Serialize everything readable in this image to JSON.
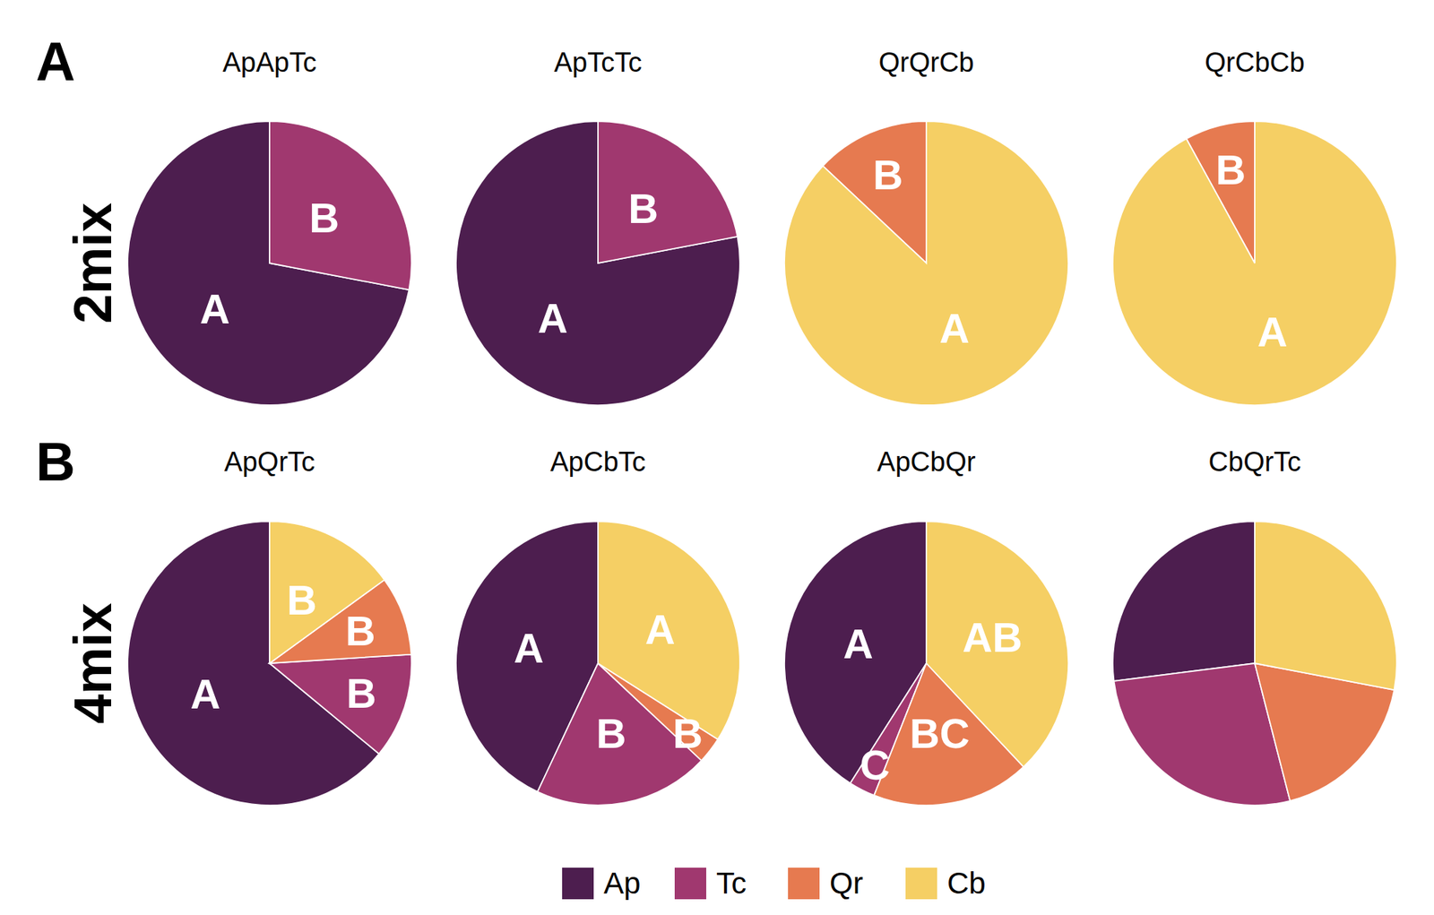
{
  "panels": [
    {
      "label": "A",
      "row": "2mix"
    },
    {
      "label": "B",
      "row": "4mix"
    }
  ],
  "legend_items": [
    {
      "name": "Ap",
      "color": "#4d1e4f"
    },
    {
      "name": "Tc",
      "color": "#a0386f"
    },
    {
      "name": "Qr",
      "color": "#e67a50"
    },
    {
      "name": "Cb",
      "color": "#f5cf64"
    }
  ],
  "chart_data": [
    {
      "type": "pie",
      "title": "ApApTc",
      "categories": [
        "Ap",
        "Tc"
      ],
      "values": [
        72,
        28
      ],
      "colors": [
        "#4d1e4f",
        "#a0386f"
      ],
      "annotations": [
        "A",
        "B"
      ]
    },
    {
      "type": "pie",
      "title": "ApTcTc",
      "categories": [
        "Ap",
        "Tc"
      ],
      "values": [
        78,
        22
      ],
      "colors": [
        "#4d1e4f",
        "#a0386f"
      ],
      "annotations": [
        "A",
        "B"
      ]
    },
    {
      "type": "pie",
      "title": "QrQrCb",
      "categories": [
        "Qr",
        "Cb"
      ],
      "values": [
        13,
        87
      ],
      "colors": [
        "#e67a50",
        "#f5cf64"
      ],
      "annotations": [
        "B",
        "A"
      ]
    },
    {
      "type": "pie",
      "title": "QrCbCb",
      "categories": [
        "Qr",
        "Cb"
      ],
      "values": [
        8,
        92
      ],
      "colors": [
        "#e67a50",
        "#f5cf64"
      ],
      "annotations": [
        "B",
        "A"
      ]
    },
    {
      "type": "pie",
      "title": "ApQrTc",
      "categories": [
        "Ap",
        "Tc",
        "Qr",
        "Cb"
      ],
      "values": [
        64,
        12,
        9,
        15
      ],
      "colors": [
        "#4d1e4f",
        "#a0386f",
        "#e67a50",
        "#f5cf64"
      ],
      "annotations": [
        "A",
        "B",
        "B",
        "B"
      ]
    },
    {
      "type": "pie",
      "title": "ApCbTc",
      "categories": [
        "Ap",
        "Tc",
        "Qr",
        "Cb"
      ],
      "values": [
        43,
        20,
        3,
        34
      ],
      "colors": [
        "#4d1e4f",
        "#a0386f",
        "#e67a50",
        "#f5cf64"
      ],
      "annotations": [
        "A",
        "B",
        "B",
        "A"
      ]
    },
    {
      "type": "pie",
      "title": "ApCbQr",
      "categories": [
        "Ap",
        "Tc",
        "Qr",
        "Cb"
      ],
      "values": [
        41,
        3,
        18,
        38
      ],
      "colors": [
        "#4d1e4f",
        "#a0386f",
        "#e67a50",
        "#f5cf64"
      ],
      "annotations": [
        "A",
        "C",
        "BC",
        "AB"
      ]
    },
    {
      "type": "pie",
      "title": "CbQrTc",
      "categories": [
        "Ap",
        "Tc",
        "Qr",
        "Cb"
      ],
      "values": [
        27,
        27,
        18,
        28
      ],
      "colors": [
        "#4d1e4f",
        "#a0386f",
        "#e67a50",
        "#f5cf64"
      ]
    }
  ]
}
